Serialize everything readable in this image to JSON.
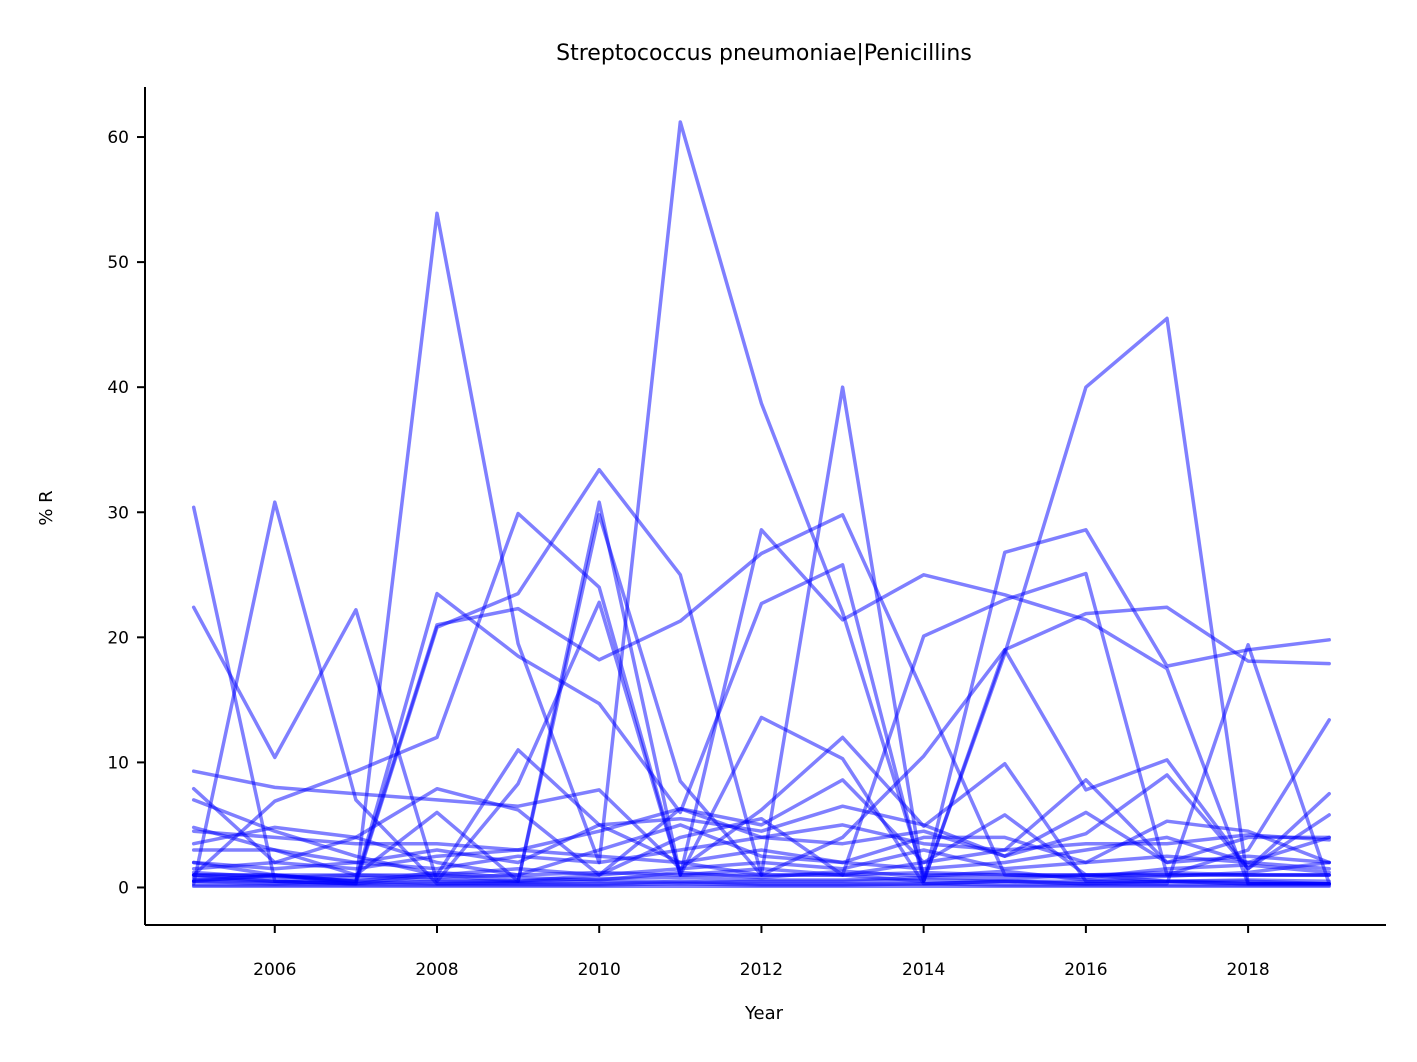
{
  "chart_data": {
    "type": "line",
    "title": "Streptococcus pneumoniae|Penicillins",
    "xlabel": "Year",
    "ylabel": "% R",
    "x": [
      2005,
      2006,
      2007,
      2008,
      2009,
      2010,
      2011,
      2012,
      2013,
      2014,
      2015,
      2016,
      2017,
      2018,
      2019
    ],
    "xlim": [
      2004.4,
      2019.7
    ],
    "ylim": [
      -3,
      64
    ],
    "xticks": [
      2006,
      2008,
      2010,
      2012,
      2014,
      2016,
      2018
    ],
    "yticks": [
      0,
      10,
      20,
      30,
      40,
      50,
      60
    ],
    "grid": false,
    "legend": "none",
    "line_color": "#0000ff",
    "line_opacity": 0.5,
    "series": [
      {
        "values": [
          1.0,
          0.5,
          0.3,
          53.9,
          19.5,
          2.0,
          61.2,
          38.7,
          22.0,
          1.0,
          1.0,
          1.0,
          0.5,
          0.5,
          0.3
        ]
      },
      {
        "values": [
          30.4,
          0.5,
          0.3,
          1.0,
          0.5,
          30.8,
          1.0,
          1.0,
          40.0,
          0.5,
          18.7,
          40.0,
          45.5,
          0.3,
          0.3
        ]
      },
      {
        "values": [
          22.4,
          10.4,
          22.2,
          0.5,
          0.5,
          29.8,
          8.5,
          1.0,
          1.0,
          0.5,
          26.8,
          28.6,
          17.7,
          19.0,
          19.8
        ]
      },
      {
        "values": [
          0.3,
          30.8,
          7.0,
          0.3,
          0.3,
          0.3,
          0.5,
          0.3,
          0.3,
          0.3,
          0.5,
          0.3,
          0.5,
          0.3,
          0.3
        ]
      },
      {
        "values": [
          1.0,
          6.9,
          9.3,
          12.0,
          29.9,
          24.0,
          1.0,
          28.6,
          21.4,
          25.0,
          23.4,
          21.4,
          17.5,
          0.3,
          0.3
        ]
      },
      {
        "values": [
          2.0,
          1.0,
          0.5,
          23.5,
          18.5,
          14.7,
          6.0,
          22.7,
          25.8,
          0.5,
          19.0,
          21.9,
          22.4,
          18.1,
          17.9
        ]
      },
      {
        "values": [
          1.0,
          1.0,
          0.5,
          21.0,
          22.3,
          18.2,
          21.3,
          26.7,
          29.8,
          15.5,
          1.0,
          1.0,
          1.0,
          1.0,
          1.0
        ]
      },
      {
        "values": [
          0.5,
          0.5,
          0.3,
          20.8,
          23.5,
          33.4,
          25.0,
          1.0,
          1.0,
          20.1,
          23.0,
          25.1,
          1.0,
          1.0,
          1.0
        ]
      },
      {
        "values": [
          0.5,
          1.0,
          0.3,
          0.5,
          8.3,
          22.8,
          1.0,
          13.6,
          10.3,
          0.3,
          0.5,
          0.3,
          0.3,
          19.4,
          0.3
        ]
      },
      {
        "values": [
          9.3,
          8.0,
          7.5,
          7.0,
          6.5,
          7.8,
          1.5,
          6.2,
          12.0,
          4.9,
          9.9,
          0.5,
          0.5,
          0.3,
          0.3
        ]
      },
      {
        "values": [
          7.9,
          2.0,
          4.0,
          7.9,
          6.2,
          1.0,
          6.3,
          5.0,
          8.6,
          2.0,
          5.8,
          1.0,
          1.0,
          3.0,
          13.4
        ]
      },
      {
        "values": [
          7.0,
          4.5,
          2.5,
          1.0,
          11.0,
          5.0,
          2.0,
          1.0,
          4.0,
          10.5,
          19.0,
          7.8,
          10.2,
          1.5,
          7.5
        ]
      },
      {
        "values": [
          4.8,
          3.0,
          1.0,
          6.0,
          0.5,
          1.0,
          4.0,
          5.5,
          1.0,
          2.0,
          3.0,
          8.6,
          2.0,
          4.0,
          4.0
        ]
      },
      {
        "values": [
          4.5,
          4.0,
          3.5,
          3.5,
          3.0,
          4.5,
          6.3,
          4.0,
          3.5,
          4.5,
          2.5,
          4.3,
          9.0,
          1.5,
          5.8
        ]
      },
      {
        "values": [
          3.5,
          4.8,
          4.0,
          2.0,
          1.0,
          3.0,
          5.0,
          2.5,
          2.0,
          1.5,
          2.0,
          3.0,
          4.0,
          2.0,
          4.0
        ]
      },
      {
        "values": [
          3.0,
          3.0,
          2.0,
          1.5,
          2.5,
          2.0,
          3.0,
          4.0,
          5.0,
          3.5,
          3.0,
          3.5,
          3.5,
          4.2,
          3.8
        ]
      },
      {
        "values": [
          2.0,
          1.5,
          2.0,
          3.0,
          2.0,
          5.0,
          5.5,
          4.5,
          6.5,
          5.0,
          2.5,
          6.0,
          2.0,
          2.5,
          2.0
        ]
      },
      {
        "values": [
          1.5,
          2.0,
          1.5,
          2.5,
          3.0,
          2.5,
          2.0,
          3.0,
          2.0,
          4.0,
          4.0,
          2.0,
          5.3,
          4.5,
          2.0
        ]
      },
      {
        "values": [
          1.0,
          1.0,
          1.0,
          1.0,
          1.5,
          1.0,
          1.5,
          2.0,
          1.5,
          3.0,
          1.5,
          2.0,
          2.5,
          2.0,
          1.5
        ]
      },
      {
        "values": [
          0.8,
          0.5,
          0.8,
          0.6,
          0.5,
          0.7,
          0.8,
          0.6,
          0.6,
          0.8,
          0.7,
          1.0,
          1.2,
          1.0,
          1.0
        ]
      },
      {
        "values": [
          0.5,
          0.3,
          0.5,
          0.3,
          0.4,
          0.5,
          0.4,
          0.5,
          0.5,
          0.6,
          0.5,
          0.5,
          0.5,
          0.6,
          0.5
        ]
      },
      {
        "values": [
          0.2,
          0.2,
          0.2,
          0.2,
          0.2,
          0.2,
          0.3,
          0.2,
          0.2,
          0.3,
          0.2,
          0.2,
          0.2,
          0.2,
          0.2
        ]
      },
      {
        "values": [
          0.1,
          0.1,
          0.1,
          0.1,
          0.1,
          0.1,
          0.1,
          0.1,
          0.1,
          0.1,
          0.1,
          0.1,
          0.1,
          0.1,
          0.1
        ]
      },
      {
        "values": [
          1.2,
          0.8,
          1.0,
          0.8,
          1.0,
          1.2,
          1.0,
          1.5,
          1.0,
          1.2,
          1.0,
          0.8,
          1.5,
          1.8,
          1.2
        ]
      },
      {
        "values": [
          0.6,
          0.9,
          0.5,
          1.2,
          0.8,
          0.6,
          1.2,
          0.8,
          1.3,
          0.9,
          1.3,
          0.6,
          0.9,
          1.2,
          2.0
        ]
      }
    ]
  }
}
